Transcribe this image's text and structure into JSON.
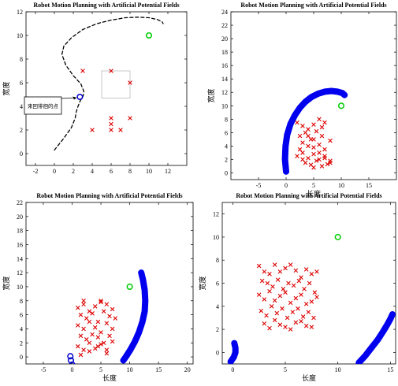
{
  "chart_data": [
    {
      "type": "scatter",
      "title": "Robot Motion Planning with Artificial Potential Fields",
      "xlabel": "",
      "ylabel": "宽度",
      "xlim": [
        -3,
        14
      ],
      "ylim": [
        -1,
        12
      ],
      "xticks": [
        -2,
        0,
        2,
        4,
        6,
        8,
        10,
        12
      ],
      "yticks": [
        0,
        2,
        4,
        6,
        8,
        10,
        12
      ],
      "grid": false,
      "series": [
        {
          "kind": "path",
          "style": "dashed",
          "color": "#000000",
          "x": [
            0,
            0.9,
            1.8,
            2.2,
            2.3,
            2.45,
            2.6,
            2.75,
            2.9,
            3.05,
            3.1,
            2.8,
            2.0,
            1.2,
            0.8,
            1.0,
            1.8,
            3.0,
            4.5,
            6.0,
            7.5,
            8.8,
            10.0,
            10.9,
            11.4,
            11.5
          ],
          "y": [
            0.3,
            1.2,
            2.2,
            3.0,
            3.5,
            3.9,
            4.2,
            4.5,
            4.7,
            4.9,
            5.3,
            5.9,
            6.6,
            7.5,
            8.4,
            9.1,
            9.8,
            10.5,
            11.0,
            11.3,
            11.5,
            11.55,
            11.5,
            11.35,
            11.15,
            11.0
          ]
        },
        {
          "kind": "markers",
          "marker": "x",
          "color": "#dd0000",
          "x": [
            3,
            6,
            8,
            4,
            6,
            7,
            8,
            6,
            6
          ],
          "y": [
            7,
            7,
            6,
            2,
            2,
            2,
            3,
            3,
            2.5
          ]
        },
        {
          "kind": "markers",
          "marker": "o",
          "color": "#0000cc",
          "x": [
            2.7
          ],
          "y": [
            4.8
          ]
        },
        {
          "kind": "markers",
          "marker": "o",
          "color": "#00cc00",
          "x": [
            10
          ],
          "y": [
            10
          ]
        }
      ],
      "annotation": {
        "text": "来回徘徊的点",
        "x": 2.7,
        "y": 4.8
      }
    },
    {
      "type": "scatter",
      "title": "Robot Motion Planning with Artificial Potential Fields",
      "xlabel": "长度",
      "ylabel": "宽度",
      "xlim": [
        -10,
        20
      ],
      "ylim": [
        -1,
        24
      ],
      "xticks": [
        -5,
        0,
        5,
        10,
        15
      ],
      "yticks": [
        0,
        2,
        4,
        6,
        8,
        10,
        12,
        14,
        16,
        18,
        20,
        22,
        24
      ],
      "grid": false,
      "series": [
        {
          "kind": "path",
          "style": "thick",
          "color": "#0000ee",
          "x": [
            0,
            -0.2,
            -0.1,
            0.2,
            0.8,
            1.6,
            2.5,
            3.5,
            4.6,
            5.8,
            7.0,
            8.2,
            9.3,
            10.2,
            10.6
          ],
          "y": [
            0.2,
            2,
            4,
            5.7,
            7.3,
            8.6,
            9.7,
            10.6,
            11.3,
            11.8,
            12.1,
            12.2,
            12.1,
            11.9,
            11.6
          ]
        },
        {
          "kind": "markers",
          "marker": "x",
          "color": "#dd0000",
          "x": [
            2,
            3,
            4,
            5,
            6,
            7,
            2.5,
            3.5,
            4.5,
            5.5,
            6.5,
            3,
            4,
            5,
            6,
            7,
            8,
            2,
            3,
            4,
            5,
            6,
            7,
            3.5,
            4.5,
            5.5,
            6.5,
            7.5,
            8,
            2.5,
            4,
            5,
            6,
            7,
            8,
            3,
            5,
            6.5
          ],
          "y": [
            7.5,
            7,
            6.5,
            7.2,
            8,
            7.5,
            5.5,
            6,
            5,
            6.2,
            5.5,
            4.5,
            4,
            3.8,
            4.2,
            3.5,
            4.8,
            2.5,
            3,
            2.2,
            2.8,
            2,
            2.5,
            1.5,
            1.2,
            1.8,
            1,
            1.3,
            1.8,
            3.5,
            5.5,
            5,
            3,
            2.2,
            1.5,
            2,
            0.8,
            6.8
          ]
        },
        {
          "kind": "markers",
          "marker": "o",
          "color": "#00cc00",
          "x": [
            10
          ],
          "y": [
            10
          ]
        }
      ]
    },
    {
      "type": "scatter",
      "title": "Robot Motion Planning with Artificial Potential Fields",
      "xlabel": "长度",
      "ylabel": "宽度",
      "xlim": [
        -8,
        21
      ],
      "ylim": [
        -1,
        22
      ],
      "xticks": [
        -5,
        0,
        5,
        10,
        15,
        20
      ],
      "yticks": [
        0,
        2,
        4,
        6,
        8,
        10,
        12,
        14,
        16,
        18,
        20,
        22
      ],
      "grid": false,
      "series": [
        {
          "kind": "path",
          "style": "thick",
          "color": "#0000ee",
          "x": [
            12,
            12.3,
            12.6,
            12.7,
            12.6,
            12.2,
            11.6,
            10.9,
            10.1,
            9.4,
            8.9
          ],
          "y": [
            12,
            11,
            9.5,
            8,
            6.5,
            5,
            3.5,
            2.2,
            1,
            0.1,
            -0.5
          ]
        },
        {
          "kind": "markers",
          "marker": "o",
          "color": "#0000cc",
          "x": [
            -0.3,
            -0.2,
            0
          ],
          "y": [
            0.1,
            -0.5,
            -1.1
          ]
        },
        {
          "kind": "markers",
          "marker": "x",
          "color": "#dd0000",
          "x": [
            1,
            2,
            3,
            4,
            5,
            6,
            7,
            1.5,
            2.5,
            3.5,
            4.5,
            5.5,
            6.5,
            1,
            2,
            3,
            4,
            5,
            6,
            7,
            1.5,
            2.5,
            3.5,
            4.5,
            5.5,
            6.5,
            1,
            2,
            3,
            4,
            5,
            6,
            7,
            1.5,
            3,
            4.5,
            6,
            2,
            5,
            7.5
          ],
          "y": [
            7,
            7.5,
            6.5,
            7.2,
            8,
            7.5,
            6.8,
            6,
            5.5,
            6.2,
            5,
            6.5,
            5.8,
            4.5,
            4,
            5,
            4.2,
            3.5,
            4.8,
            4,
            3,
            2.5,
            3.2,
            2.8,
            2,
            3,
            1.5,
            1,
            2,
            1.2,
            1.8,
            0.5,
            2.2,
            0.3,
            0.8,
            1.5,
            1,
            8,
            7.8,
            5.5
          ]
        },
        {
          "kind": "markers",
          "marker": "o",
          "color": "#00cc00",
          "x": [
            10
          ],
          "y": [
            10
          ]
        }
      ]
    },
    {
      "type": "scatter",
      "title": "Robot Motion Planning with Artificial Potential Fields",
      "xlabel": "长度",
      "ylabel": "宽度",
      "xlim": [
        -1,
        15.5
      ],
      "ylim": [
        -1,
        13
      ],
      "xticks": [
        0,
        5,
        10,
        15
      ],
      "yticks": [
        0,
        2,
        4,
        6,
        8,
        10,
        12
      ],
      "grid": false,
      "series": [
        {
          "kind": "path",
          "style": "thick",
          "color": "#0000ee",
          "x": [
            -0.2,
            0.1,
            0.25,
            0.25,
            0.15
          ],
          "y": [
            -0.8,
            -0.4,
            0,
            0.4,
            0.8
          ]
        },
        {
          "kind": "path",
          "style": "thick",
          "color": "#0000ee",
          "x": [
            12,
            12.6,
            13.2,
            13.8,
            14.3,
            14.7,
            15.0,
            15.2
          ],
          "y": [
            -0.9,
            -0.3,
            0.4,
            1.1,
            1.8,
            2.4,
            2.9,
            3.3
          ]
        },
        {
          "kind": "markers",
          "marker": "x",
          "color": "#dd0000",
          "x": [
            2.5,
            3,
            3.5,
            4,
            4.5,
            5,
            5.5,
            6,
            6.5,
            7,
            7.5,
            8,
            2.8,
            3.3,
            3.8,
            4.3,
            4.8,
            5.3,
            5.8,
            6.3,
            6.8,
            7.3,
            7.8,
            2.5,
            3,
            3.5,
            4,
            4.5,
            5,
            5.5,
            6,
            6.5,
            7,
            7.5,
            8,
            2.7,
            3.2,
            3.7,
            4.2,
            4.7,
            5.2,
            5.7,
            6.2,
            6.7,
            7.2,
            7.7,
            3,
            4,
            5,
            6,
            7,
            3.5,
            4.5,
            5.5,
            6.5,
            7.5
          ],
          "y": [
            7.5,
            7,
            6.8,
            7.6,
            7,
            7.3,
            7.6,
            7.1,
            6.5,
            7.2,
            6.8,
            7,
            6.2,
            6,
            5.7,
            6.3,
            5.5,
            6,
            5.8,
            6.2,
            5.5,
            6,
            5.2,
            5,
            4.6,
            5.3,
            4.5,
            4.9,
            5.2,
            4.3,
            4.7,
            5,
            4.2,
            4.4,
            4.8,
            3.6,
            3.2,
            4,
            3.4,
            3.8,
            3,
            3.5,
            3.8,
            3.1,
            3.5,
            3,
            2.5,
            2.8,
            2.2,
            2.6,
            2.3,
            2.1,
            2.4,
            2,
            2.7,
            2.2
          ]
        },
        {
          "kind": "markers",
          "marker": "o",
          "color": "#00cc00",
          "x": [
            10
          ],
          "y": [
            10
          ]
        }
      ]
    }
  ]
}
